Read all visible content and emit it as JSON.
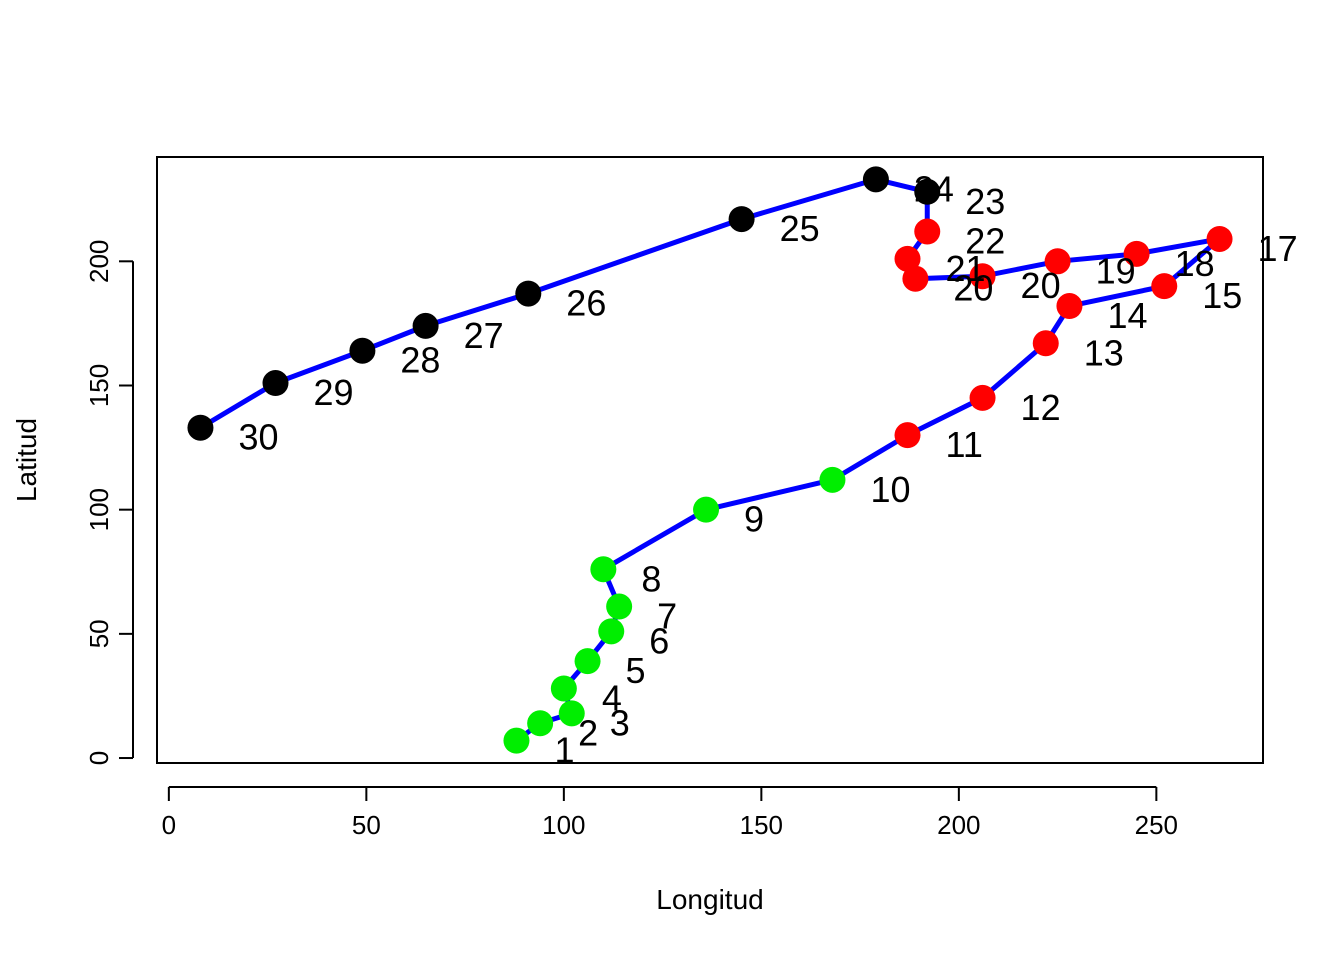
{
  "chart_data": {
    "type": "scatter",
    "title": "",
    "xlabel": "Longitud",
    "ylabel": "Latitud",
    "xlim": [
      -3,
      277
    ],
    "ylim": [
      -2,
      242
    ],
    "xticks": [
      0,
      50,
      100,
      150,
      200,
      250
    ],
    "yticks": [
      0,
      50,
      100,
      150,
      200
    ],
    "grid": false,
    "line_color": "#0000ff",
    "series": [
      {
        "points": [
          {
            "label": "1",
            "x": 88,
            "y": 7,
            "color": "#00ee00"
          },
          {
            "label": "2",
            "x": 94,
            "y": 14,
            "color": "#00ee00"
          },
          {
            "label": "3",
            "x": 102,
            "y": 18,
            "color": "#00ee00"
          },
          {
            "label": "4",
            "x": 100,
            "y": 28,
            "color": "#00ee00"
          },
          {
            "label": "5",
            "x": 106,
            "y": 39,
            "color": "#00ee00"
          },
          {
            "label": "6",
            "x": 112,
            "y": 51,
            "color": "#00ee00"
          },
          {
            "label": "7",
            "x": 114,
            "y": 61,
            "color": "#00ee00"
          },
          {
            "label": "8",
            "x": 110,
            "y": 76,
            "color": "#00ee00"
          },
          {
            "label": "9",
            "x": 136,
            "y": 100,
            "color": "#00ee00"
          },
          {
            "label": "10",
            "x": 168,
            "y": 112,
            "color": "#00ee00"
          },
          {
            "label": "11",
            "x": 187,
            "y": 130,
            "color": "#ff0000"
          },
          {
            "label": "12",
            "x": 206,
            "y": 145,
            "color": "#ff0000"
          },
          {
            "label": "13",
            "x": 222,
            "y": 167,
            "color": "#ff0000"
          },
          {
            "label": "14",
            "x": 228,
            "y": 182,
            "color": "#ff0000"
          },
          {
            "label": "15",
            "x": 252,
            "y": 190,
            "color": "#ff0000"
          },
          {
            "label": "17",
            "x": 266,
            "y": 209,
            "color": "#ff0000"
          },
          {
            "label": "18",
            "x": 245,
            "y": 203,
            "color": "#ff0000"
          },
          {
            "label": "19",
            "x": 225,
            "y": 200,
            "color": "#ff0000"
          },
          {
            "label": "20",
            "x": 206,
            "y": 194,
            "color": "#ff0000"
          },
          {
            "label": "20",
            "x": 189,
            "y": 193,
            "color": "#ff0000"
          },
          {
            "label": "21",
            "x": 187,
            "y": 201,
            "color": "#ff0000"
          },
          {
            "label": "22",
            "x": 192,
            "y": 212,
            "color": "#ff0000"
          },
          {
            "label": "23",
            "x": 192,
            "y": 228,
            "color": "#000000"
          },
          {
            "label": "24",
            "x": 179,
            "y": 233,
            "color": "#000000"
          },
          {
            "label": "25",
            "x": 145,
            "y": 217,
            "color": "#000000"
          },
          {
            "label": "26",
            "x": 91,
            "y": 187,
            "color": "#000000"
          },
          {
            "label": "27",
            "x": 65,
            "y": 174,
            "color": "#000000"
          },
          {
            "label": "28",
            "x": 49,
            "y": 164,
            "color": "#000000"
          },
          {
            "label": "29",
            "x": 27,
            "y": 151,
            "color": "#000000"
          },
          {
            "label": "30",
            "x": 8,
            "y": 133,
            "color": "#000000"
          }
        ]
      }
    ]
  }
}
